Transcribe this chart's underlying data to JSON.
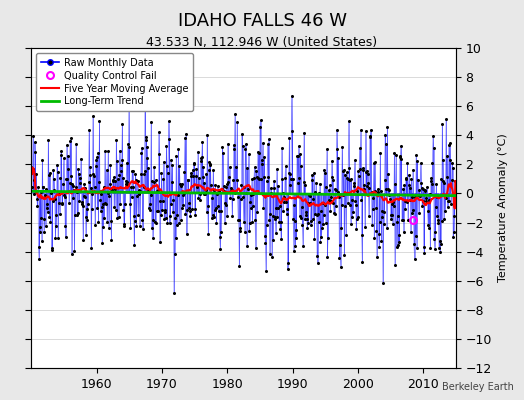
{
  "title": "IDAHO FALLS 46 W",
  "subtitle": "43.533 N, 112.946 W (United States)",
  "ylabel": "Temperature Anomaly (°C)",
  "credit": "Berkeley Earth",
  "xlim": [
    1950,
    2015
  ],
  "ylim": [
    -12,
    10
  ],
  "yticks": [
    -12,
    -10,
    -8,
    -6,
    -4,
    -2,
    0,
    2,
    4,
    6,
    8,
    10
  ],
  "xticks": [
    1960,
    1970,
    1980,
    1990,
    2000,
    2010
  ],
  "line_color": "#0000FF",
  "dot_color": "#000000",
  "ma_color": "#FF0000",
  "trend_color": "#00BB00",
  "qc_color": "#FF00FF",
  "bg_color": "#E8E8E8",
  "plot_bg": "#FFFFFF",
  "grid_color": "#CCCCCC",
  "seed": 42,
  "n_years": 65,
  "start_year": 1950
}
